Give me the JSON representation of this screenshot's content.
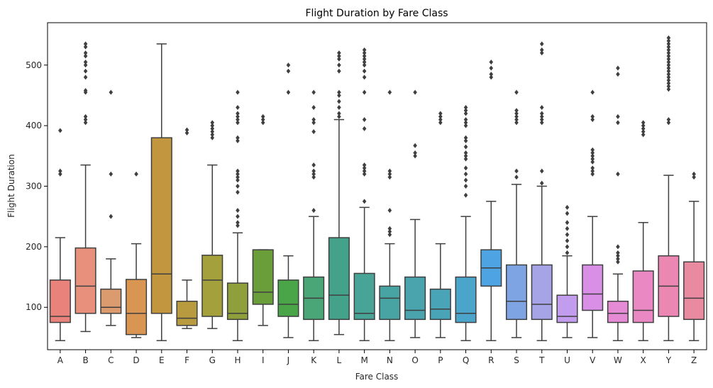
{
  "chart_data": {
    "type": "box",
    "title": "Flight Duration by Fare Class",
    "xlabel": "Fare Class",
    "ylabel": "Flight Duration",
    "ylim": [
      30,
      570
    ],
    "yticks": [
      100,
      200,
      300,
      400,
      500
    ],
    "grid": false,
    "categories": [
      "A",
      "B",
      "C",
      "D",
      "E",
      "F",
      "G",
      "H",
      "I",
      "J",
      "K",
      "L",
      "M",
      "N",
      "O",
      "P",
      "Q",
      "R",
      "S",
      "T",
      "U",
      "V",
      "W",
      "X",
      "Y",
      "Z"
    ],
    "colors": [
      "#e9827b",
      "#e8907c",
      "#dc9a6f",
      "#d99653",
      "#c1963f",
      "#b79b3e",
      "#a4a03c",
      "#8f9f3c",
      "#6a9e3a",
      "#4aa548",
      "#4aa577",
      "#44a28b",
      "#48a496",
      "#48a3a3",
      "#49a4ae",
      "#4aa4b8",
      "#4ba5cb",
      "#4ea4e2",
      "#7ea4e3",
      "#a6a4e6",
      "#c39ded",
      "#d98fe6",
      "#e58ad4",
      "#ea88c3",
      "#eb87b2",
      "#e98aa1"
    ],
    "boxes": [
      {
        "q1": 75,
        "median": 85,
        "q3": 145,
        "whisker_low": 45,
        "whisker_high": 215,
        "outliers": [
          320,
          325,
          392
        ]
      },
      {
        "q1": 90,
        "median": 135,
        "q3": 198,
        "whisker_low": 60,
        "whisker_high": 335,
        "outliers": [
          405,
          410,
          415,
          455,
          458,
          480,
          490,
          500,
          505,
          515,
          520,
          530,
          535
        ]
      },
      {
        "q1": 90,
        "median": 100,
        "q3": 130,
        "whisker_low": 70,
        "whisker_high": 180,
        "outliers": [
          250,
          320,
          455
        ]
      },
      {
        "q1": 55,
        "median": 90,
        "q3": 146,
        "whisker_low": 50,
        "whisker_high": 205,
        "outliers": [
          320
        ]
      },
      {
        "q1": 90,
        "median": 155,
        "q3": 380,
        "whisker_low": 45,
        "whisker_high": 535,
        "outliers": []
      },
      {
        "q1": 70,
        "median": 82,
        "q3": 110,
        "whisker_low": 65,
        "whisker_high": 145,
        "outliers": [
          388,
          393
        ]
      },
      {
        "q1": 85,
        "median": 145,
        "q3": 186,
        "whisker_low": 65,
        "whisker_high": 335,
        "outliers": [
          380,
          385,
          390,
          395,
          400,
          405
        ]
      },
      {
        "q1": 80,
        "median": 90,
        "q3": 140,
        "whisker_low": 45,
        "whisker_high": 223,
        "outliers": [
          235,
          240,
          250,
          260,
          290,
          300,
          310,
          315,
          320,
          325,
          375,
          380,
          405,
          410,
          415,
          420,
          430,
          455
        ]
      },
      {
        "q1": 105,
        "median": 125,
        "q3": 195,
        "whisker_low": 70,
        "whisker_high": 195,
        "outliers": [
          405,
          410,
          415
        ]
      },
      {
        "q1": 85,
        "median": 105,
        "q3": 145,
        "whisker_low": 50,
        "whisker_high": 185,
        "outliers": [
          455,
          490,
          500
        ]
      },
      {
        "q1": 80,
        "median": 115,
        "q3": 150,
        "whisker_low": 45,
        "whisker_high": 250,
        "outliers": [
          260,
          315,
          320,
          325,
          335,
          390,
          405,
          410,
          430,
          455
        ]
      },
      {
        "q1": 80,
        "median": 120,
        "q3": 215,
        "whisker_low": 55,
        "whisker_high": 410,
        "outliers": [
          415,
          420,
          430,
          440,
          450,
          455,
          490,
          500,
          510,
          515,
          520
        ]
      },
      {
        "q1": 80,
        "median": 90,
        "q3": 156,
        "whisker_low": 45,
        "whisker_high": 265,
        "outliers": [
          275,
          320,
          325,
          330,
          335,
          395,
          410,
          455,
          480,
          490,
          500,
          505,
          510,
          515,
          520,
          525
        ]
      },
      {
        "q1": 80,
        "median": 115,
        "q3": 135,
        "whisker_low": 45,
        "whisker_high": 205,
        "outliers": [
          220,
          225,
          230,
          260,
          315,
          320,
          325,
          455
        ]
      },
      {
        "q1": 80,
        "median": 95,
        "q3": 150,
        "whisker_low": 50,
        "whisker_high": 245,
        "outliers": [
          350,
          355,
          367,
          455
        ]
      },
      {
        "q1": 80,
        "median": 97,
        "q3": 130,
        "whisker_low": 50,
        "whisker_high": 205,
        "outliers": [
          405,
          410,
          415,
          420
        ]
      },
      {
        "q1": 75,
        "median": 90,
        "q3": 150,
        "whisker_low": 45,
        "whisker_high": 250,
        "outliers": [
          285,
          300,
          310,
          320,
          330,
          345,
          350,
          355,
          365,
          375,
          380,
          400,
          405,
          410,
          420,
          425,
          430
        ]
      },
      {
        "q1": 135,
        "median": 165,
        "q3": 195,
        "whisker_low": 45,
        "whisker_high": 275,
        "outliers": [
          480,
          485,
          495,
          505
        ]
      },
      {
        "q1": 80,
        "median": 110,
        "q3": 170,
        "whisker_low": 50,
        "whisker_high": 303,
        "outliers": [
          315,
          325,
          405,
          410,
          415,
          420,
          425,
          455
        ]
      },
      {
        "q1": 80,
        "median": 105,
        "q3": 170,
        "whisker_low": 45,
        "whisker_high": 300,
        "outliers": [
          305,
          325,
          405,
          410,
          415,
          420,
          430,
          520,
          525,
          535
        ]
      },
      {
        "q1": 75,
        "median": 85,
        "q3": 120,
        "whisker_low": 50,
        "whisker_high": 185,
        "outliers": [
          190,
          200,
          210,
          220,
          230,
          240,
          255,
          265
        ]
      },
      {
        "q1": 95,
        "median": 122,
        "q3": 170,
        "whisker_low": 50,
        "whisker_high": 250,
        "outliers": [
          320,
          325,
          330,
          340,
          345,
          350,
          355,
          360,
          410,
          415,
          455
        ]
      },
      {
        "q1": 75,
        "median": 90,
        "q3": 110,
        "whisker_low": 45,
        "whisker_high": 155,
        "outliers": [
          175,
          180,
          185,
          190,
          200,
          320,
          405,
          415,
          485,
          495
        ]
      },
      {
        "q1": 75,
        "median": 95,
        "q3": 160,
        "whisker_low": 45,
        "whisker_high": 240,
        "outliers": [
          385,
          390,
          395,
          400,
          405
        ]
      },
      {
        "q1": 85,
        "median": 135,
        "q3": 185,
        "whisker_low": 45,
        "whisker_high": 318,
        "outliers": [
          405,
          410,
          460,
          465,
          470,
          475,
          480,
          485,
          490,
          495,
          500,
          505,
          510,
          515,
          520,
          525,
          530,
          535,
          540,
          545
        ]
      },
      {
        "q1": 80,
        "median": 115,
        "q3": 175,
        "whisker_low": 45,
        "whisker_high": 275,
        "outliers": [
          315,
          320
        ]
      }
    ]
  }
}
